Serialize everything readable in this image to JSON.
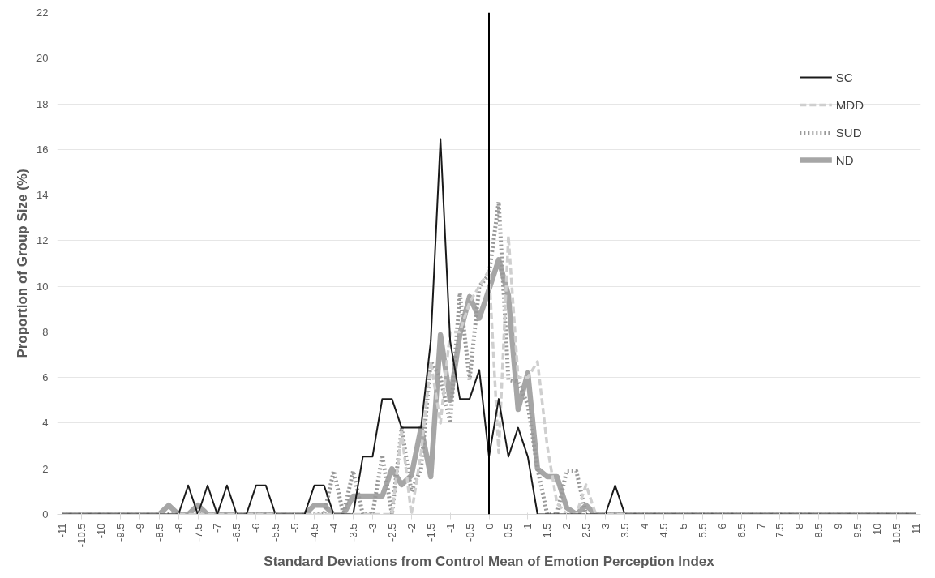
{
  "chart_data": {
    "type": "line",
    "xlabel": "Standard Deviations from Control Mean of Emotion Perception Index",
    "ylabel": "Proportion of Group Size (%)",
    "x": [
      -11,
      -10.75,
      -10.5,
      -10.25,
      -10,
      -9.75,
      -9.5,
      -9.25,
      -9,
      -8.75,
      -8.5,
      -8.25,
      -8,
      -7.75,
      -7.5,
      -7.25,
      -7,
      -6.75,
      -6.5,
      -6.25,
      -6,
      -5.75,
      -5.5,
      -5.25,
      -5,
      -4.75,
      -4.5,
      -4.25,
      -4,
      -3.75,
      -3.5,
      -3.25,
      -3,
      -2.75,
      -2.5,
      -2.25,
      -2,
      -1.75,
      -1.5,
      -1.25,
      -1,
      -0.75,
      -0.5,
      -0.25,
      0,
      0.25,
      0.5,
      0.75,
      1,
      1.25,
      1.5,
      1.75,
      2,
      2.25,
      2.5,
      2.75,
      3,
      3.25,
      3.5,
      3.75,
      4,
      4.25,
      4.5,
      4.75,
      5,
      5.25,
      5.5,
      5.75,
      6,
      6.25,
      6.5,
      6.75,
      7,
      7.25,
      7.5,
      7.75,
      8,
      8.25,
      8.5,
      8.75,
      9,
      9.25,
      9.5,
      9.75,
      10,
      10.25,
      10.5,
      10.75,
      11
    ],
    "series": [
      {
        "name": "SC",
        "color": "#1a1a1a",
        "line_style": "solid",
        "values": [
          0,
          0,
          0,
          0,
          0,
          0,
          0,
          0,
          0,
          0,
          0,
          0,
          0,
          1.27,
          0,
          1.27,
          0,
          1.27,
          0,
          0,
          1.27,
          1.27,
          0,
          0,
          0,
          0,
          1.27,
          1.27,
          0,
          0,
          0,
          2.53,
          2.53,
          5.06,
          5.06,
          3.8,
          3.8,
          3.8,
          7.59,
          16.46,
          7.59,
          5.06,
          5.06,
          6.33,
          2.53,
          5.06,
          2.53,
          3.8,
          2.53,
          0,
          0,
          0,
          0,
          0,
          0,
          0,
          0,
          1.27,
          0,
          0,
          0,
          0,
          0,
          0,
          0,
          0,
          0,
          0,
          0,
          0,
          0,
          0,
          0,
          0,
          0,
          0,
          0,
          0,
          0,
          0,
          0,
          0,
          0,
          0,
          0,
          0,
          0,
          0,
          0
        ]
      },
      {
        "name": "MDD",
        "color": "#cfcfcf",
        "line_style": "dashed",
        "values": [
          0,
          0,
          0,
          0,
          0,
          0,
          0,
          0,
          0,
          0,
          0,
          0,
          0,
          0,
          0,
          0,
          0,
          0,
          0,
          0,
          0,
          0,
          0,
          0,
          0,
          0,
          0,
          0,
          0,
          0,
          0,
          0,
          0,
          0,
          0,
          3.6,
          0,
          2.7,
          6.7,
          4.0,
          8.0,
          8.0,
          9.3,
          10.0,
          10.7,
          2.7,
          12.2,
          6.0,
          6.0,
          6.7,
          3.0,
          0.5,
          0,
          0,
          1.3,
          0,
          0,
          0,
          0,
          0,
          0,
          0,
          0,
          0,
          0,
          0,
          0,
          0,
          0,
          0,
          0,
          0,
          0,
          0,
          0,
          0,
          0,
          0,
          0,
          0,
          0,
          0,
          0,
          0,
          0,
          0,
          0,
          0,
          0
        ]
      },
      {
        "name": "SUD",
        "color": "#999999",
        "line_style": "dotted",
        "values": [
          0,
          0,
          0,
          0,
          0,
          0,
          0,
          0,
          0,
          0,
          0,
          0,
          0,
          0,
          0,
          0,
          0,
          0,
          0,
          0,
          0,
          0,
          0,
          0,
          0,
          0,
          0,
          0,
          1.9,
          0,
          1.9,
          0,
          0,
          2.6,
          0,
          3.8,
          1.0,
          2.0,
          6.7,
          6.0,
          4.0,
          9.7,
          5.9,
          10.0,
          10.5,
          13.7,
          5.9,
          5.8,
          4.8,
          2.0,
          0,
          0,
          1.9,
          1.9,
          0,
          0,
          0,
          0,
          0,
          0,
          0,
          0,
          0,
          0,
          0,
          0,
          0,
          0,
          0,
          0,
          0,
          0,
          0,
          0,
          0,
          0,
          0,
          0,
          0,
          0,
          0,
          0,
          0,
          0,
          0,
          0,
          0,
          0,
          0
        ]
      },
      {
        "name": "ND",
        "color": "#a6a6a6",
        "line_style": "solid",
        "values": [
          0,
          0,
          0,
          0,
          0,
          0,
          0,
          0,
          0,
          0,
          0,
          0.4,
          0,
          0,
          0.4,
          0,
          0,
          0,
          0,
          0,
          0,
          0,
          0,
          0,
          0,
          0,
          0.4,
          0.4,
          0,
          0,
          0.8,
          0.8,
          0.8,
          0.8,
          2.0,
          1.3,
          1.7,
          3.8,
          1.65,
          7.87,
          5.0,
          7.9,
          9.55,
          8.6,
          9.86,
          11.17,
          9.6,
          4.6,
          6.2,
          2.0,
          1.65,
          1.65,
          0.3,
          0,
          0.4,
          0,
          0,
          0,
          0,
          0,
          0,
          0,
          0,
          0,
          0,
          0,
          0,
          0,
          0,
          0,
          0,
          0,
          0,
          0,
          0,
          0,
          0,
          0,
          0,
          0,
          0,
          0,
          0,
          0,
          0,
          0,
          0,
          0,
          0
        ]
      }
    ],
    "xlim": [
      -11.125,
      11.125
    ],
    "xticks": [
      -11,
      -10.5,
      -10,
      -9.5,
      -9,
      -8.5,
      -8,
      -7.5,
      -7,
      -6.5,
      -6,
      -5.5,
      -5,
      -4.5,
      -4,
      -3.5,
      -3,
      -2.5,
      -2,
      -1.5,
      -1,
      -0.5,
      0,
      0.5,
      1,
      1.5,
      2,
      2.5,
      3,
      3.5,
      4,
      4.5,
      5,
      5.5,
      6,
      6.5,
      7,
      7.5,
      8,
      8.5,
      9,
      9.5,
      10,
      10.5,
      11
    ],
    "ylim": [
      0,
      22
    ],
    "yticks": [
      0,
      2,
      4,
      6,
      8,
      10,
      12,
      14,
      16,
      18,
      20,
      22
    ],
    "ref_lines": [
      {
        "axis": "x",
        "value": 0,
        "color": "#000000"
      }
    ],
    "grid": "y",
    "legend": "top right",
    "marker": "none"
  }
}
